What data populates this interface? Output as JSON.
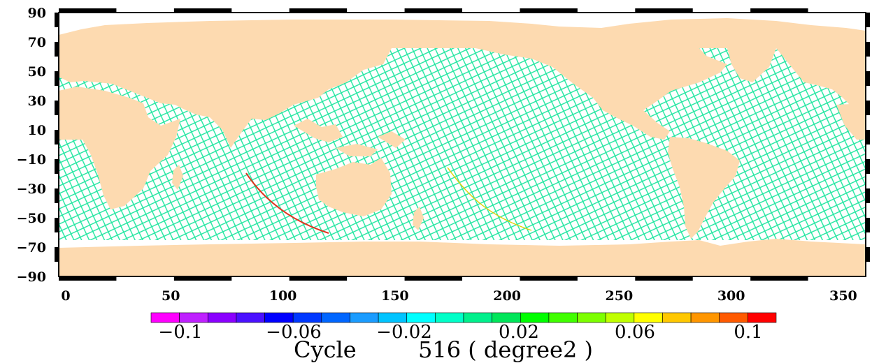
{
  "map": {
    "title_left": "Cycle",
    "title_right": "516 ( degree2 )",
    "lon_range": [
      0,
      360
    ],
    "lat_range": [
      -90,
      90
    ],
    "lat_ticks": [
      "90",
      "70",
      "50",
      "30",
      "10",
      "−10",
      "−30",
      "−50",
      "−70",
      "−90"
    ],
    "lon_ticks": [
      "0",
      "50",
      "100",
      "150",
      "200",
      "250",
      "300",
      "350"
    ],
    "land_color": "#fddab0",
    "ocean_color": "#ffffff",
    "track_color": "#20e6a0",
    "frame_color": "#000000"
  },
  "colorbar": {
    "labels": [
      "−0.1",
      "−0.06",
      "−0.02",
      "0.02",
      "0.06",
      "0.1"
    ],
    "colors": [
      "#ff00ff",
      "#bf20ff",
      "#8a00ff",
      "#4a10ff",
      "#0000ff",
      "#0038ff",
      "#0066ff",
      "#1a9cff",
      "#00c4ff",
      "#00ffff",
      "#00ffc8",
      "#00f08c",
      "#00e65a",
      "#00ff00",
      "#40ff00",
      "#7dff00",
      "#c0ff00",
      "#ffff00",
      "#ffc800",
      "#ff9600",
      "#ff5a00",
      "#ff0000"
    ]
  }
}
